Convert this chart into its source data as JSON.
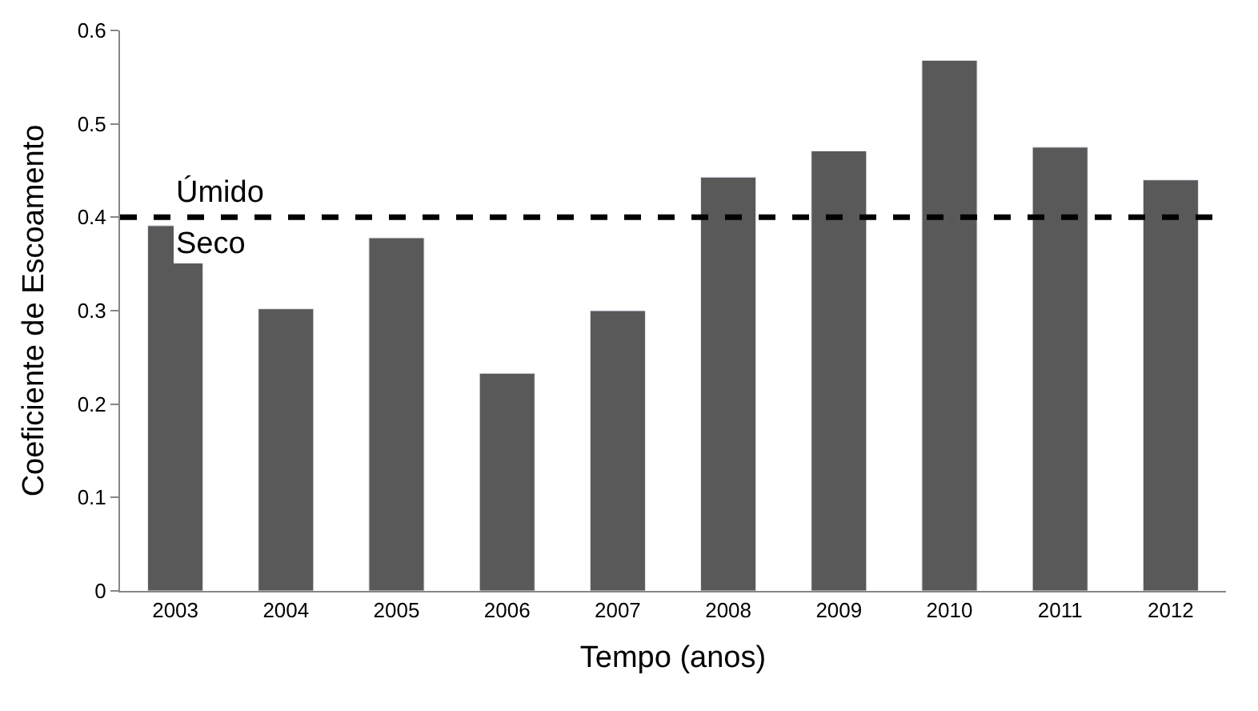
{
  "chart_data": {
    "type": "bar",
    "xlabel": "Tempo (anos)",
    "ylabel": "Coeficiente de Escoamento",
    "categories": [
      "2003",
      "2004",
      "2005",
      "2006",
      "2007",
      "2008",
      "2009",
      "2010",
      "2011",
      "2012"
    ],
    "values": [
      0.391,
      0.302,
      0.378,
      0.233,
      0.3,
      0.443,
      0.471,
      0.568,
      0.475,
      0.44
    ],
    "color": "#595959",
    "ylim": [
      0,
      0.6
    ],
    "yticks": [
      0,
      0.1,
      0.2,
      0.3,
      0.4,
      0.5,
      0.6
    ],
    "ref_lines": [
      {
        "axis": "y",
        "value": 0.4,
        "color": "#000000",
        "line_style": "dashed",
        "label": "Úmido"
      }
    ],
    "annotations": [
      "Seco"
    ]
  }
}
